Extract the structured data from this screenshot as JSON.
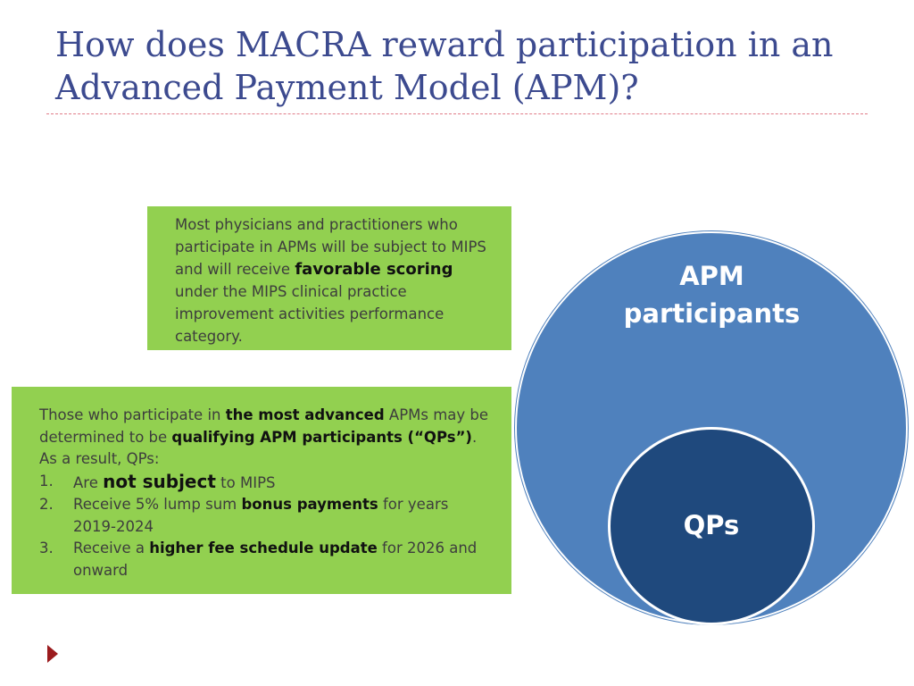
{
  "slide": {
    "title": "How does MACRA reward participation in an Advanced Payment Model (APM)?"
  },
  "box_top": {
    "text_1": "Most physicians and practitioners who participate in APMs will be subject to MIPS and will receive ",
    "bold_1": "favorable scoring",
    "text_2": " under the MIPS clinical practice improvement activities performance category."
  },
  "box_bottom": {
    "intro_1": "Those who participate in ",
    "intro_bold_1": "the most advanced",
    "intro_2": " APMs may be determined to be ",
    "intro_bold_2": "qualifying APM participants (“QPs”)",
    "intro_3": ". As a result, QPs:",
    "items": [
      {
        "num": "1.",
        "pre": "Are ",
        "bold": "not subject",
        "post": " to MIPS"
      },
      {
        "num": "2.",
        "pre": "Receive 5% lump sum ",
        "bold": "bonus payments",
        "post": " for years 2019-2024"
      },
      {
        "num": "3.",
        "pre": "Receive a ",
        "bold": "higher fee schedule update",
        "post": " for 2026 and onward"
      }
    ]
  },
  "diagram": {
    "outer_label": "APM participants",
    "inner_label": "QPs",
    "outer_color": "#4f81bd",
    "inner_color": "#1f497d"
  },
  "colors": {
    "title": "#3c4a8f",
    "box_fill": "#92d050",
    "bullet": "#9b1b1e"
  }
}
